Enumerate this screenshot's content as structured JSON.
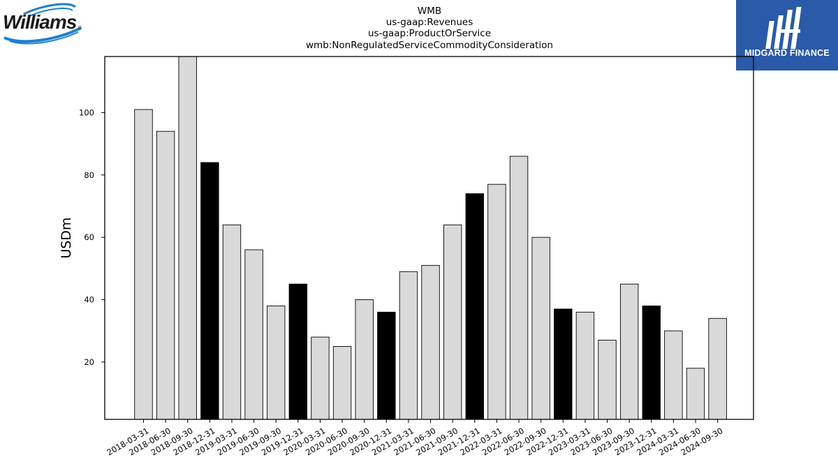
{
  "logos": {
    "left_text": "Williams",
    "left_mark": "®",
    "right_text": "MIDGARD FINANCE"
  },
  "chart_data": {
    "type": "bar",
    "title": [
      "WMB",
      "us-gaap:Revenues",
      "us-gaap:ProductOrService",
      "wmb:NonRegulatedServiceCommodityConsideration"
    ],
    "xlabel": "",
    "ylabel": "USDm",
    "ylim": [
      1.6,
      118
    ],
    "yticks": [
      20,
      40,
      60,
      80,
      100
    ],
    "grid": false,
    "legend": "none",
    "categories": [
      "2018-03-31",
      "2018-06-30",
      "2018-09-30",
      "2018-12-31",
      "2019-03-31",
      "2019-06-30",
      "2019-09-30",
      "2019-12-31",
      "2020-03-31",
      "2020-06-30",
      "2020-09-30",
      "2020-12-31",
      "2021-03-31",
      "2021-06-30",
      "2021-09-30",
      "2021-12-31",
      "2022-03-31",
      "2022-06-30",
      "2022-09-30",
      "2022-12-31",
      "2023-03-31",
      "2023-06-30",
      "2023-09-30",
      "2023-12-31",
      "2024-03-31",
      "2024-06-30",
      "2024-09-30"
    ],
    "values": [
      101,
      94,
      118,
      84,
      64,
      56,
      38,
      45,
      28,
      25,
      40,
      36,
      49,
      51,
      64,
      74,
      77,
      86,
      60,
      37,
      36,
      27,
      45,
      38,
      30,
      18,
      34
    ],
    "colors": {
      "quarter": "#d9d9d9",
      "year_end": "#000000",
      "edge": "#000000"
    }
  }
}
